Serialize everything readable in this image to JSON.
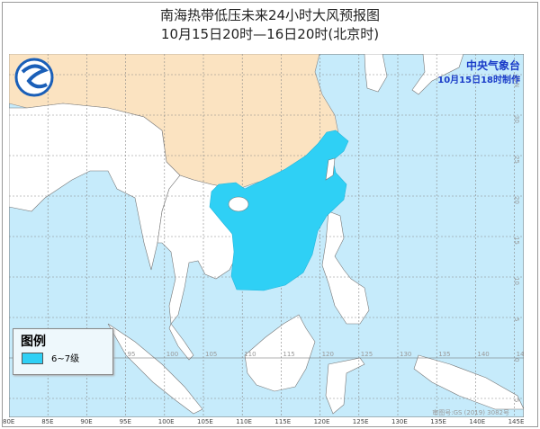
{
  "title": "南海热带低压未来24小时大风预报图",
  "subtitle": "10月15日20时—16日20时(北京时)",
  "agency": {
    "name": "中央气象台",
    "issued": "10月15日18时制作"
  },
  "legend": {
    "title": "图例",
    "items": [
      {
        "label": "6~7级",
        "color": "#2fd0f5"
      }
    ]
  },
  "map": {
    "land_china_color": "#fbe3c1",
    "land_other_color": "#ffffff",
    "sea_color": "#c6ebfb",
    "wind_color": "#2fd0f5",
    "lon_labels": [
      "80E",
      "85E",
      "90E",
      "95E",
      "100E",
      "105E",
      "110E",
      "115E",
      "120E",
      "125E",
      "130E",
      "135E",
      "140E",
      "145E"
    ],
    "inner_lon_labels": [
      "95",
      "100",
      "105",
      "110",
      "115",
      "120",
      "125",
      "130",
      "135",
      "140",
      "145"
    ],
    "lat_labels": [
      "35N",
      "30",
      "25",
      "20",
      "15",
      "10",
      "5",
      "0",
      "5"
    ],
    "approval": "审图号:GS (2019) 3082号"
  }
}
